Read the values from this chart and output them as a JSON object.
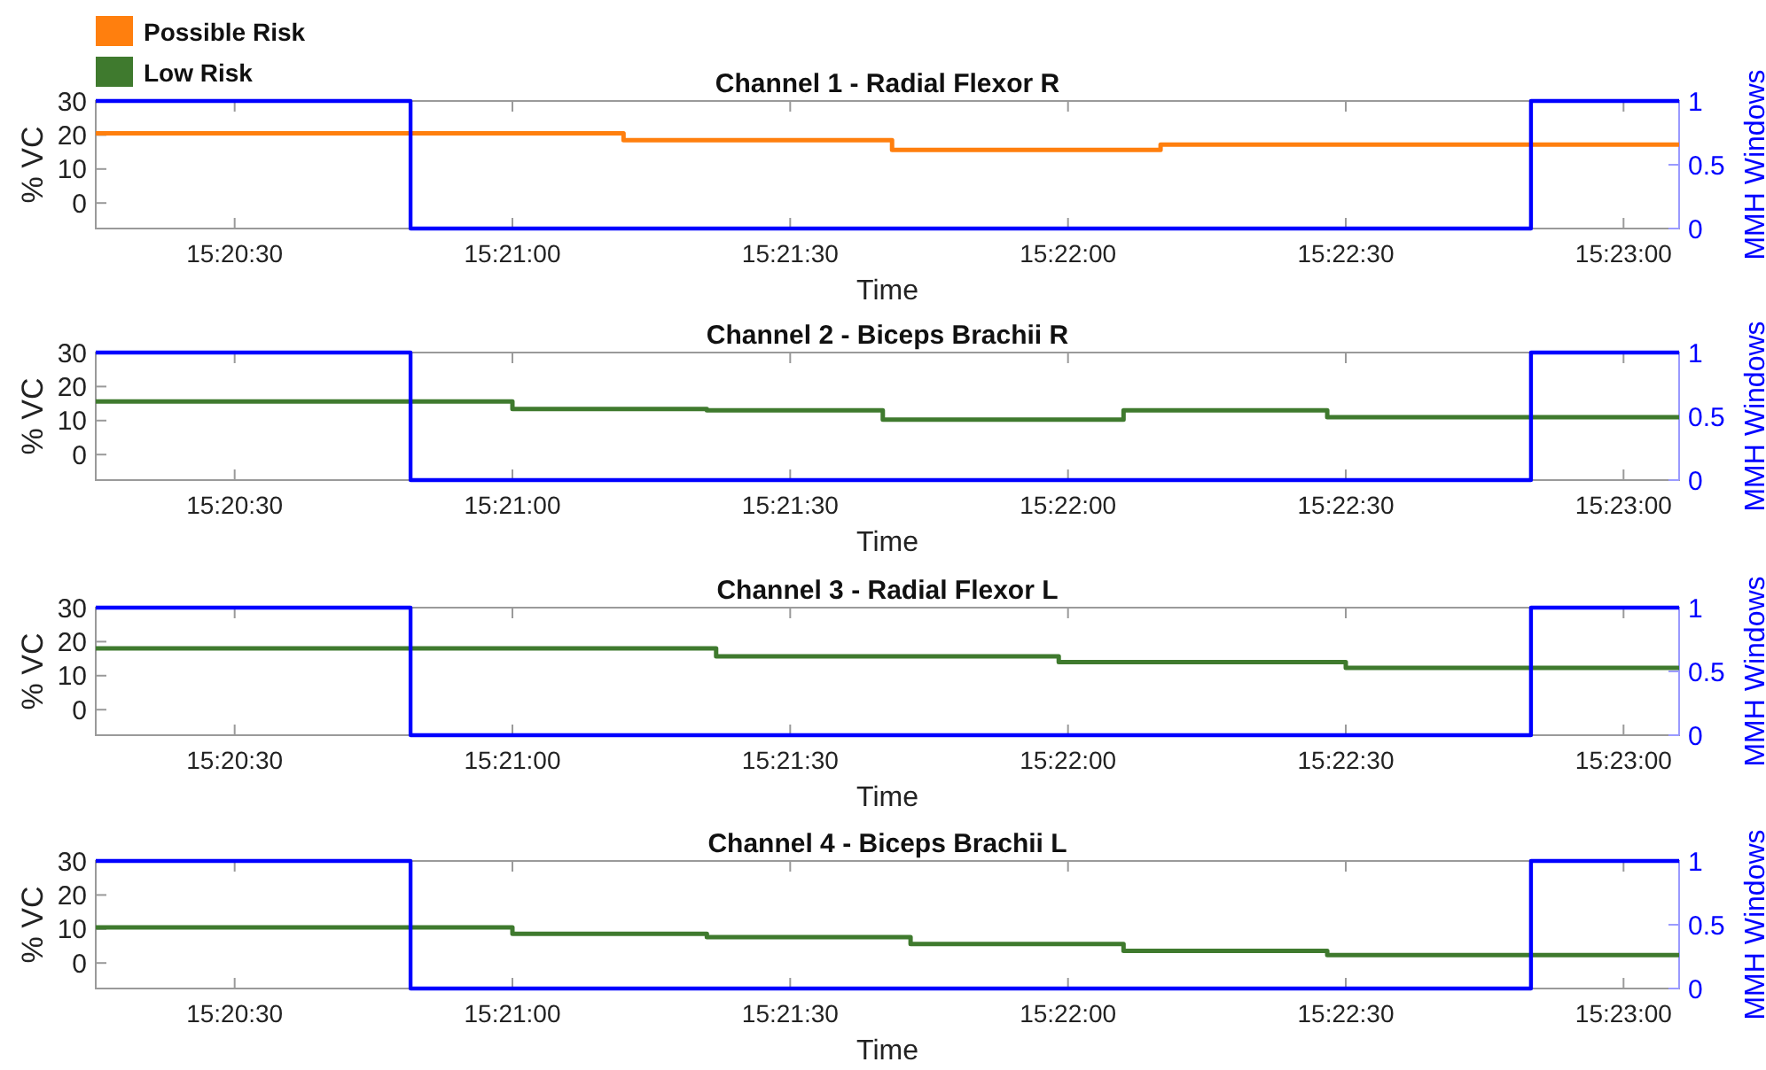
{
  "chart_data": [
    {
      "type": "step",
      "title": "Channel 1 - Radial Flexor R",
      "xlabel": "Time",
      "ylabel": "% VC",
      "y2label": "MMH Windows",
      "legend": "top left",
      "xlim": [
        15.3375,
        15.385
      ],
      "xticks": [
        {
          "value": 15.341667,
          "label": "15:20:30"
        },
        {
          "value": 15.35,
          "label": "15:21:00"
        },
        {
          "value": 15.358333,
          "label": "15:21:30"
        },
        {
          "value": 15.366667,
          "label": "15:22:00"
        },
        {
          "value": 15.375,
          "label": "15:22:30"
        },
        {
          "value": 15.383333,
          "label": "15:23:00"
        }
      ],
      "ylim": [
        -7.5,
        30
      ],
      "yticks": [
        0,
        10,
        20,
        30
      ],
      "y2lim": [
        0,
        1
      ],
      "y2ticks": [
        0,
        0.5,
        1
      ],
      "series": [
        {
          "name": "Possible Risk",
          "color": "#ff7f0e",
          "x": [
            15.3375,
            15.353333,
            15.361389,
            15.369444,
            15.385
          ],
          "values": [
            20.5,
            18.5,
            15.6,
            17.2,
            17.2
          ]
        },
        {
          "color": "#0000ff",
          "axis": "y2",
          "x": [
            15.3375,
            15.346944,
            15.380556,
            15.385
          ],
          "values": [
            1,
            0,
            1,
            1
          ]
        }
      ]
    },
    {
      "type": "step",
      "title": "Channel 2 - Biceps Brachii R",
      "xlabel": "Time",
      "ylabel": "% VC",
      "y2label": "MMH Windows",
      "xlim": [
        15.3375,
        15.385
      ],
      "xticks": [
        {
          "value": 15.341667,
          "label": "15:20:30"
        },
        {
          "value": 15.35,
          "label": "15:21:00"
        },
        {
          "value": 15.358333,
          "label": "15:21:30"
        },
        {
          "value": 15.366667,
          "label": "15:22:00"
        },
        {
          "value": 15.375,
          "label": "15:22:30"
        },
        {
          "value": 15.383333,
          "label": "15:23:00"
        }
      ],
      "ylim": [
        -7.5,
        30
      ],
      "yticks": [
        0,
        10,
        20,
        30
      ],
      "y2lim": [
        0,
        1
      ],
      "y2ticks": [
        0,
        0.5,
        1
      ],
      "series": [
        {
          "name": "Low Risk",
          "color": "#3f7a2e",
          "x": [
            15.3375,
            15.35,
            15.355833,
            15.361111,
            15.368333,
            15.374444,
            15.385
          ],
          "values": [
            15.6,
            13.4,
            13,
            10.3,
            13,
            11,
            11
          ]
        },
        {
          "color": "#0000ff",
          "axis": "y2",
          "x": [
            15.3375,
            15.346944,
            15.380556,
            15.385
          ],
          "values": [
            1,
            0,
            1,
            1
          ]
        }
      ]
    },
    {
      "type": "step",
      "title": "Channel 3 - Radial Flexor L",
      "xlabel": "Time",
      "ylabel": "% VC",
      "y2label": "MMH Windows",
      "xlim": [
        15.3375,
        15.385
      ],
      "xticks": [
        {
          "value": 15.341667,
          "label": "15:20:30"
        },
        {
          "value": 15.35,
          "label": "15:21:00"
        },
        {
          "value": 15.358333,
          "label": "15:21:30"
        },
        {
          "value": 15.366667,
          "label": "15:22:00"
        },
        {
          "value": 15.375,
          "label": "15:22:30"
        },
        {
          "value": 15.383333,
          "label": "15:23:00"
        }
      ],
      "ylim": [
        -7.5,
        30
      ],
      "yticks": [
        0,
        10,
        20,
        30
      ],
      "y2lim": [
        0,
        1
      ],
      "y2ticks": [
        0,
        0.5,
        1
      ],
      "series": [
        {
          "name": "Low Risk",
          "color": "#3f7a2e",
          "x": [
            15.3375,
            15.356111,
            15.366389,
            15.375,
            15.385
          ],
          "values": [
            18,
            15.7,
            14,
            12.3,
            12.3
          ]
        },
        {
          "color": "#0000ff",
          "axis": "y2",
          "x": [
            15.3375,
            15.346944,
            15.380556,
            15.385
          ],
          "values": [
            1,
            0,
            1,
            1
          ]
        }
      ]
    },
    {
      "type": "step",
      "title": "Channel 4 - Biceps Brachii L",
      "xlabel": "Time",
      "ylabel": "% VC",
      "y2label": "MMH Windows",
      "xlim": [
        15.3375,
        15.385
      ],
      "xticks": [
        {
          "value": 15.341667,
          "label": "15:20:30"
        },
        {
          "value": 15.35,
          "label": "15:21:00"
        },
        {
          "value": 15.358333,
          "label": "15:21:30"
        },
        {
          "value": 15.366667,
          "label": "15:22:00"
        },
        {
          "value": 15.375,
          "label": "15:22:30"
        },
        {
          "value": 15.383333,
          "label": "15:23:00"
        }
      ],
      "ylim": [
        -7.5,
        30
      ],
      "yticks": [
        0,
        10,
        20,
        30
      ],
      "y2lim": [
        0,
        1
      ],
      "y2ticks": [
        0,
        0.5,
        1
      ],
      "series": [
        {
          "name": "Low Risk",
          "color": "#3f7a2e",
          "x": [
            15.3375,
            15.35,
            15.355833,
            15.361944,
            15.368333,
            15.374444,
            15.385
          ],
          "values": [
            10.5,
            8.6,
            7.6,
            5.6,
            3.6,
            2.3,
            2.3
          ]
        },
        {
          "color": "#0000ff",
          "axis": "y2",
          "x": [
            15.3375,
            15.346944,
            15.380556,
            15.385
          ],
          "values": [
            1,
            0,
            1,
            1
          ]
        }
      ]
    }
  ]
}
